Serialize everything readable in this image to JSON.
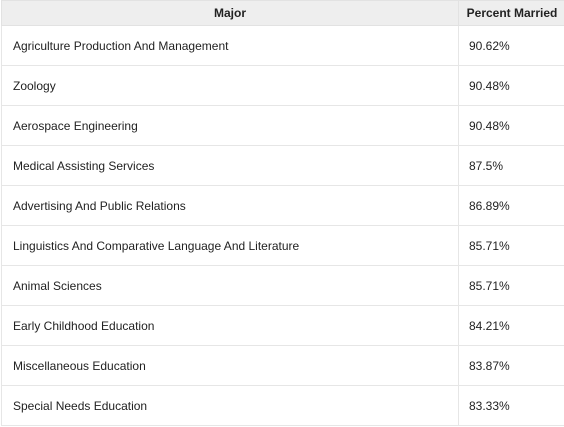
{
  "table": {
    "headers": {
      "major": "Major",
      "percent_married": "Percent Married"
    },
    "rows": [
      {
        "major": "Agriculture Production And Management",
        "percent_married": "90.62%"
      },
      {
        "major": "Zoology",
        "percent_married": "90.48%"
      },
      {
        "major": "Aerospace Engineering",
        "percent_married": "90.48%"
      },
      {
        "major": "Medical Assisting Services",
        "percent_married": "87.5%"
      },
      {
        "major": "Advertising And Public Relations",
        "percent_married": "86.89%"
      },
      {
        "major": "Linguistics And Comparative Language And Literature",
        "percent_married": "85.71%"
      },
      {
        "major": "Animal Sciences",
        "percent_married": "85.71%"
      },
      {
        "major": "Early Childhood Education",
        "percent_married": "84.21%"
      },
      {
        "major": "Miscellaneous Education",
        "percent_married": "83.87%"
      },
      {
        "major": "Special Needs Education",
        "percent_married": "83.33%"
      }
    ]
  }
}
